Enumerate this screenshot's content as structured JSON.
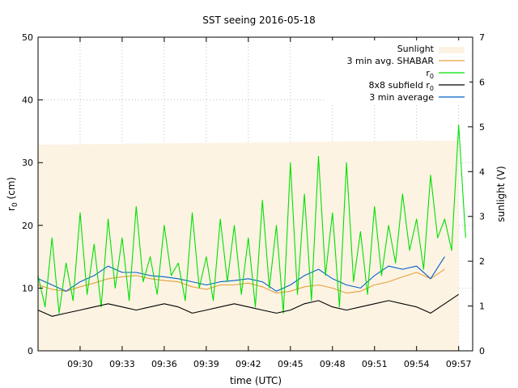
{
  "chart_data": {
    "type": "line",
    "title": "SST seeing 2016-05-18",
    "xlabel": "time (UTC)",
    "ylabel": "r0 (cm)",
    "ylabel_main": "r",
    "ylabel_sub": "0",
    "ylabel_tail": " (cm)",
    "y2label": "sunlight (V)",
    "x_start": "09:27",
    "x_end": "09:58",
    "x_ticks": [
      "09:30",
      "09:33",
      "09:36",
      "09:39",
      "09:42",
      "09:45",
      "09:48",
      "09:51",
      "09:54",
      "09:57"
    ],
    "ylim": [
      0,
      50
    ],
    "y_ticks": [
      0,
      10,
      20,
      30,
      40,
      50
    ],
    "y2lim": [
      0,
      7
    ],
    "y2_ticks": [
      0,
      1,
      2,
      3,
      4,
      5,
      6,
      7
    ],
    "grid": true,
    "legend_position": "top-right",
    "colors": {
      "sunlight": "#fdf3e3",
      "shabar": "#e6a03c",
      "r0": "#00e000",
      "r0_flagged": "#e00000",
      "subfield": "#000000",
      "avg": "#0060c8"
    },
    "series": [
      {
        "name": "Sunlight",
        "type": "area",
        "axis": "y2",
        "x": [
          "09:27",
          "09:57"
        ],
        "values": [
          4.6,
          4.7
        ]
      },
      {
        "name": "3 min avg. SHABAR",
        "x": [
          "09:27",
          "09:28",
          "09:29",
          "09:30",
          "09:31",
          "09:32",
          "09:33",
          "09:34",
          "09:35",
          "09:36",
          "09:37",
          "09:38",
          "09:39",
          "09:40",
          "09:41",
          "09:42",
          "09:43",
          "09:44",
          "09:45",
          "09:46",
          "09:47",
          "09:48",
          "09:49",
          "09:50",
          "09:51",
          "09:52",
          "09:53",
          "09:54",
          "09:55",
          "09:56"
        ],
        "values": [
          10.5,
          9.8,
          9.5,
          10.2,
          10.8,
          11.5,
          11.8,
          12.0,
          11.5,
          11.2,
          11.0,
          10.2,
          9.8,
          10.5,
          10.5,
          10.8,
          10.2,
          9.2,
          9.5,
          10.2,
          10.5,
          10.0,
          9.2,
          9.5,
          10.5,
          11.0,
          11.8,
          12.5,
          11.5,
          13.0
        ]
      },
      {
        "name": "3 min average",
        "x": [
          "09:27",
          "09:28",
          "09:29",
          "09:30",
          "09:31",
          "09:32",
          "09:33",
          "09:34",
          "09:35",
          "09:36",
          "09:37",
          "09:38",
          "09:39",
          "09:40",
          "09:41",
          "09:42",
          "09:43",
          "09:44",
          "09:45",
          "09:46",
          "09:47",
          "09:48",
          "09:49",
          "09:50",
          "09:51",
          "09:52",
          "09:53",
          "09:54",
          "09:55",
          "09:56"
        ],
        "values": [
          11.5,
          10.5,
          9.5,
          11.0,
          12.0,
          13.5,
          12.5,
          12.5,
          12.0,
          11.8,
          11.5,
          11.0,
          10.5,
          11.0,
          11.2,
          11.5,
          11.0,
          9.5,
          10.5,
          12.0,
          13.0,
          11.5,
          10.5,
          10.0,
          12.0,
          13.5,
          13.0,
          13.5,
          11.5,
          15.0
        ]
      },
      {
        "name": "r0",
        "x": [
          "09:27",
          "09:27.5",
          "09:28",
          "09:28.5",
          "09:29",
          "09:29.5",
          "09:30",
          "09:30.5",
          "09:31",
          "09:31.5",
          "09:32",
          "09:32.5",
          "09:33",
          "09:33.5",
          "09:34",
          "09:34.5",
          "09:35",
          "09:35.5",
          "09:36",
          "09:36.5",
          "09:37",
          "09:37.5",
          "09:38",
          "09:38.5",
          "09:39",
          "09:39.5",
          "09:40",
          "09:40.5",
          "09:41",
          "09:41.5",
          "09:42",
          "09:42.5",
          "09:43",
          "09:43.5",
          "09:44",
          "09:44.5",
          "09:45",
          "09:45.5",
          "09:46",
          "09:46.5",
          "09:47",
          "09:47.5",
          "09:48",
          "09:48.5",
          "09:49",
          "09:49.5",
          "09:50",
          "09:50.5",
          "09:51",
          "09:51.5",
          "09:52",
          "09:52.5",
          "09:53",
          "09:53.5",
          "09:54",
          "09:54.5",
          "09:55",
          "09:55.5",
          "09:56",
          "09:56.5",
          "09:57",
          "09:57.5"
        ],
        "values": [
          12,
          7,
          18,
          6,
          14,
          8,
          22,
          9,
          17,
          7,
          21,
          10,
          18,
          8,
          23,
          11,
          15,
          9,
          20,
          12,
          14,
          8,
          22,
          10,
          15,
          8,
          21,
          11,
          20,
          9,
          18,
          7,
          24,
          10,
          20,
          6,
          30,
          9,
          25,
          8,
          31,
          12,
          22,
          7,
          30,
          11,
          19,
          9,
          23,
          12,
          20,
          14,
          25,
          16,
          21,
          13,
          28,
          18,
          21,
          16,
          36,
          18
        ]
      },
      {
        "name": "8x8 subfield r0",
        "x": [
          "09:27",
          "09:28",
          "09:29",
          "09:30",
          "09:31",
          "09:32",
          "09:33",
          "09:34",
          "09:35",
          "09:36",
          "09:37",
          "09:38",
          "09:39",
          "09:40",
          "09:41",
          "09:42",
          "09:43",
          "09:44",
          "09:45",
          "09:46",
          "09:47",
          "09:48",
          "09:49",
          "09:50",
          "09:51",
          "09:52",
          "09:53",
          "09:54",
          "09:55",
          "09:56",
          "09:57"
        ],
        "values": [
          6.5,
          5.5,
          6.0,
          6.5,
          7.0,
          7.5,
          7.0,
          6.5,
          7.0,
          7.5,
          7.0,
          6.0,
          6.5,
          7.0,
          7.5,
          7.0,
          6.5,
          6.0,
          6.5,
          7.5,
          8.0,
          7.0,
          6.5,
          7.0,
          7.5,
          8.0,
          7.5,
          7.0,
          6.0,
          7.5,
          9.0
        ]
      }
    ]
  },
  "legend": {
    "sunlight": "Sunlight",
    "shabar": "3 min avg. SHABAR",
    "r0_main": "r",
    "r0_sub": "0",
    "subfield_main": "8x8 subfield r",
    "subfield_sub": "0",
    "avg": "3 min average"
  }
}
